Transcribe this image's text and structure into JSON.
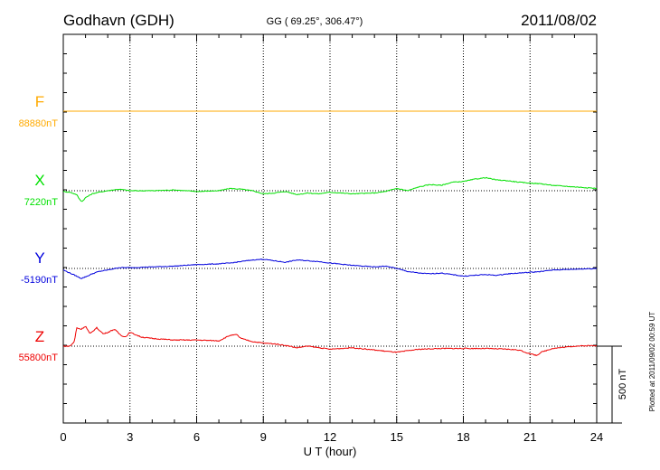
{
  "header": {
    "station": "Godhavn (GDH)",
    "coords": "GG ( 69.25°, 306.47°)",
    "date": "2011/08/02"
  },
  "footer_note": "Plotted at 2011/09/02 00:59 UT",
  "chart_data": {
    "type": "line",
    "title": "Godhavn (GDH)",
    "xlabel": "U T (hour)",
    "ylabel": "",
    "xlim": [
      0,
      24
    ],
    "x_ticks": [
      "0",
      "3",
      "6",
      "9",
      "12",
      "15",
      "18",
      "21",
      "24"
    ],
    "grid": true,
    "scale_bar": {
      "value": 500,
      "label": "500 nT"
    },
    "series": [
      {
        "name": "F",
        "baseline_label": "88880nT",
        "color": "#ffaa00",
        "unit": "nT",
        "x": [
          0,
          24
        ],
        "y": [
          0,
          0
        ]
      },
      {
        "name": "X",
        "baseline_label": "7220nT",
        "color": "#00e000",
        "unit": "nT",
        "x": [
          0,
          0.3,
          0.6,
          0.75,
          0.85,
          1.0,
          1.3,
          1.6,
          2.0,
          2.5,
          3.0,
          4.0,
          5.0,
          6.0,
          7.0,
          7.5,
          8.0,
          8.5,
          9.0,
          9.5,
          10.0,
          10.5,
          11.0,
          11.5,
          12.0,
          13.0,
          14.0,
          14.5,
          15.0,
          15.5,
          16.0,
          16.5,
          17.0,
          17.5,
          18.0,
          18.5,
          19.0,
          19.5,
          20.0,
          20.5,
          21.0,
          21.5,
          22.0,
          23.0,
          24.0
        ],
        "y": [
          -5,
          -10,
          -25,
          -60,
          -70,
          -45,
          -20,
          -10,
          0,
          10,
          0,
          0,
          5,
          -5,
          0,
          15,
          10,
          0,
          -20,
          -15,
          -5,
          -25,
          -15,
          -20,
          -10,
          -20,
          -15,
          -5,
          15,
          0,
          25,
          40,
          35,
          55,
          60,
          75,
          85,
          70,
          65,
          55,
          50,
          45,
          35,
          25,
          15
        ]
      },
      {
        "name": "Y",
        "baseline_label": "-5190nT",
        "color": "#0000dd",
        "unit": "nT",
        "x": [
          0,
          0.3,
          0.6,
          0.8,
          1.0,
          1.3,
          1.6,
          2.0,
          2.5,
          3.0,
          4.0,
          5.0,
          6.0,
          7.0,
          7.5,
          8.0,
          8.5,
          9.0,
          9.5,
          10.0,
          10.5,
          11.0,
          11.5,
          12.0,
          13.0,
          14.0,
          14.5,
          15.0,
          15.5,
          16.0,
          16.5,
          17.0,
          17.5,
          18.0,
          18.5,
          19.0,
          19.5,
          20.0,
          20.5,
          21.0,
          21.5,
          22.0,
          23.0,
          24.0
        ],
        "y": [
          -10,
          -30,
          -50,
          -65,
          -55,
          -35,
          -20,
          -10,
          5,
          5,
          10,
          15,
          25,
          30,
          35,
          45,
          55,
          60,
          50,
          40,
          55,
          50,
          45,
          35,
          20,
          10,
          15,
          0,
          -20,
          -30,
          -35,
          -30,
          -40,
          -50,
          -45,
          -40,
          -45,
          -35,
          -30,
          -25,
          -20,
          -10,
          -5,
          0
        ]
      },
      {
        "name": "Z",
        "baseline_label": "55800nT",
        "color": "#ee0000",
        "unit": "nT",
        "x": [
          0,
          0.3,
          0.5,
          0.6,
          0.8,
          1.0,
          1.2,
          1.5,
          1.8,
          2.0,
          2.3,
          2.6,
          2.8,
          3.0,
          3.5,
          4.0,
          5.0,
          6.0,
          7.0,
          7.5,
          7.8,
          8.0,
          8.5,
          9.0,
          9.5,
          10.0,
          10.5,
          11.0,
          11.5,
          12.0,
          13.0,
          14.0,
          15.0,
          16.0,
          17.0,
          18.0,
          19.0,
          20.0,
          20.5,
          21.0,
          21.3,
          21.5,
          22.0,
          23.0,
          24.0
        ],
        "y": [
          0,
          0,
          30,
          120,
          110,
          130,
          80,
          120,
          80,
          90,
          110,
          70,
          60,
          90,
          60,
          50,
          40,
          40,
          35,
          70,
          75,
          50,
          30,
          20,
          15,
          5,
          -10,
          0,
          -10,
          -20,
          -10,
          -25,
          -40,
          -20,
          -15,
          -15,
          -15,
          -20,
          -25,
          -50,
          -60,
          -40,
          -15,
          0,
          5
        ]
      }
    ]
  }
}
